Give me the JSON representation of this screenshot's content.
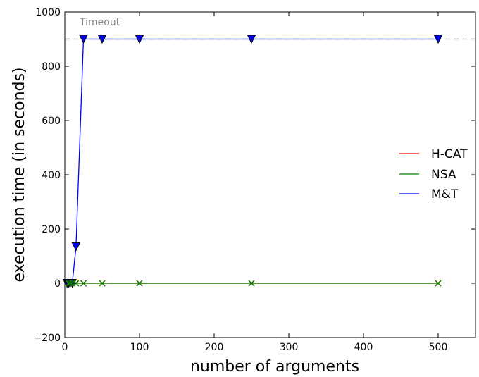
{
  "chart_data": {
    "type": "line",
    "xlabel": "number of arguments",
    "ylabel": "execution time (in seconds)",
    "xlim": [
      0,
      550
    ],
    "ylim": [
      -200,
      1000
    ],
    "xticks": [
      0,
      100,
      200,
      300,
      400,
      500
    ],
    "yticks": [
      -200,
      0,
      200,
      400,
      600,
      800,
      1000
    ],
    "tick_labels_x": [
      "0",
      "100",
      "200",
      "300",
      "400",
      "500"
    ],
    "tick_labels_y": [
      "−200",
      "0",
      "200",
      "400",
      "600",
      "800",
      "1000"
    ],
    "grid": false,
    "legend_position": "right",
    "timeout": {
      "value": 900,
      "label": "Timeout",
      "color": "#808080"
    },
    "series": [
      {
        "name": "H-CAT",
        "color": "#ff0000",
        "marker": "x",
        "x": [
          5,
          7,
          10,
          15,
          25,
          50,
          100,
          250,
          500
        ],
        "y": [
          0,
          0,
          0,
          0,
          0,
          0,
          0,
          0,
          0
        ]
      },
      {
        "name": "NSA",
        "color": "#008000",
        "marker": "x",
        "x": [
          5,
          7,
          10,
          15,
          25,
          50,
          100,
          250,
          500
        ],
        "y": [
          0,
          0,
          0,
          0,
          0,
          0,
          0,
          0,
          0
        ]
      },
      {
        "name": "M&T",
        "color": "#0000ff",
        "marker": "triangle-down",
        "x": [
          3,
          5,
          7,
          10,
          15,
          25,
          50,
          100,
          250,
          500
        ],
        "y": [
          0,
          0,
          0,
          0,
          135,
          900,
          900,
          900,
          900,
          900
        ]
      }
    ]
  }
}
